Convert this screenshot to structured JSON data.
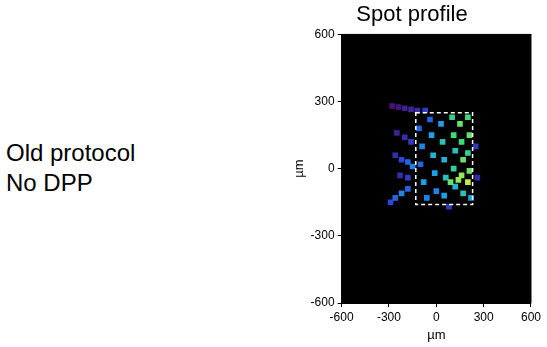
{
  "chart_data": {
    "type": "scatter",
    "title": "Spot profile",
    "annotations": [
      "Old protocol",
      "No DPP"
    ],
    "x_label": "µm",
    "y_label": "µm",
    "xlim": [
      -600,
      600
    ],
    "ylim": [
      -600,
      600
    ],
    "xticks": [
      -600,
      -300,
      0,
      300,
      600
    ],
    "yticks": [
      -600,
      -300,
      0,
      300,
      600
    ],
    "grid": false,
    "x": [
      -290,
      -260,
      -220,
      -180,
      -260,
      -220,
      -180,
      -150,
      -280,
      -240,
      -200,
      -160,
      -120,
      -250,
      -200,
      -160,
      -230,
      -180,
      -110,
      -90,
      -100,
      -80,
      -60,
      -40,
      -30,
      -20,
      -10,
      0,
      30,
      40,
      50,
      60,
      50,
      100,
      110,
      120,
      110,
      120,
      150,
      160,
      170,
      160,
      170,
      200,
      210,
      200,
      210,
      200,
      220,
      140,
      90,
      250,
      260,
      -70,
      80
    ],
    "y": [
      -150,
      -130,
      -110,
      -90,
      60,
      40,
      30,
      10,
      280,
      275,
      270,
      265,
      260,
      160,
      140,
      120,
      -30,
      -40,
      180,
      100,
      20,
      -60,
      -130,
      220,
      150,
      60,
      -20,
      -100,
      200,
      120,
      40,
      -40,
      -120,
      230,
      150,
      80,
      0,
      -80,
      200,
      120,
      40,
      -30,
      -110,
      230,
      150,
      70,
      -10,
      -60,
      -130,
      -50,
      -60,
      100,
      -40,
      260,
      -170
    ],
    "intensity": [
      0.45,
      0.5,
      0.55,
      0.5,
      0.35,
      0.45,
      0.5,
      0.55,
      0.25,
      0.25,
      0.3,
      0.3,
      0.35,
      0.3,
      0.35,
      0.4,
      0.35,
      0.4,
      0.5,
      0.55,
      0.5,
      0.6,
      0.55,
      0.5,
      0.6,
      0.65,
      0.6,
      0.55,
      0.6,
      0.7,
      0.65,
      0.7,
      0.6,
      0.75,
      0.8,
      0.7,
      0.75,
      0.65,
      0.85,
      0.8,
      0.85,
      0.9,
      0.7,
      0.8,
      0.85,
      0.75,
      0.85,
      0.95,
      0.6,
      0.9,
      0.85,
      0.4,
      0.35,
      0.4,
      0.4
    ],
    "box": {
      "x": [
        -130,
        230
      ],
      "y": [
        -160,
        250
      ]
    }
  }
}
